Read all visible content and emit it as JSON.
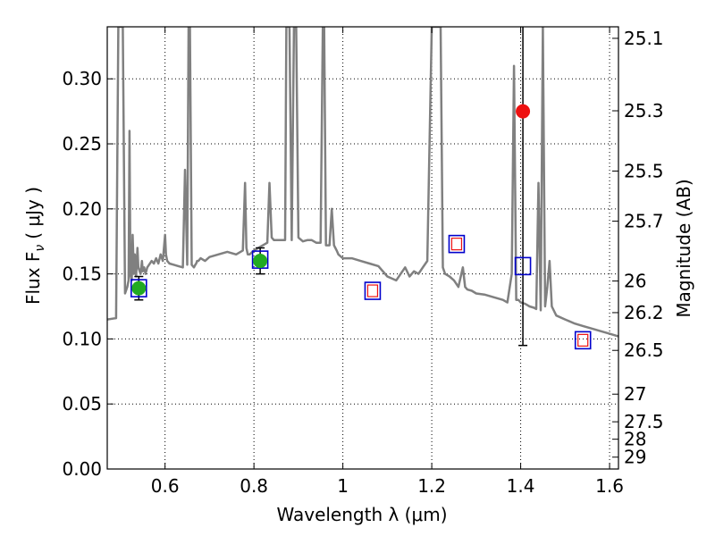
{
  "chart_data": {
    "type": "line",
    "xlabel": "Wavelength  λ (μm)",
    "ylabel": "Flux  F",
    "ylabel_sub": "ν",
    "ylabel_unit": "( μJy )",
    "y2label": "Magnitude (AB)",
    "xlim": [
      0.47,
      1.62
    ],
    "ylim": [
      0.0,
      0.34
    ],
    "grid": true,
    "x_ticks": [
      0.6,
      0.8,
      1.0,
      1.2,
      1.4,
      1.6
    ],
    "x_tick_labels": [
      "0.6",
      "0.8",
      "1",
      "1.2",
      "1.4",
      "1.6"
    ],
    "y_ticks": [
      0.0,
      0.05,
      0.1,
      0.15,
      0.2,
      0.25,
      0.3
    ],
    "y_tick_labels": [
      "0.00",
      "0.05",
      "0.10",
      "0.15",
      "0.20",
      "0.25",
      "0.30"
    ],
    "y2_ticks": [
      {
        "mag": 25.1,
        "label": "25.1"
      },
      {
        "mag": 25.3,
        "label": "25.3"
      },
      {
        "mag": 25.5,
        "label": "25.5"
      },
      {
        "mag": 25.7,
        "label": "25.7"
      },
      {
        "mag": 26.0,
        "label": "26"
      },
      {
        "mag": 26.2,
        "label": "26.2"
      },
      {
        "mag": 26.5,
        "label": "26.5"
      },
      {
        "mag": 27.0,
        "label": "27"
      },
      {
        "mag": 27.5,
        "label": "27.5"
      },
      {
        "mag": 28.0,
        "label": "28"
      },
      {
        "mag": 29.0,
        "label": "29"
      }
    ],
    "series": [
      {
        "kind": "model-spectrum",
        "color": "#808080",
        "x": [
          0.47,
          0.49,
          0.495,
          0.5,
          0.505,
          0.51,
          0.515,
          0.518,
          0.52,
          0.522,
          0.525,
          0.527,
          0.53,
          0.532,
          0.535,
          0.538,
          0.54,
          0.545,
          0.548,
          0.55,
          0.553,
          0.556,
          0.56,
          0.57,
          0.575,
          0.58,
          0.585,
          0.59,
          0.595,
          0.6,
          0.602,
          0.605,
          0.61,
          0.62,
          0.63,
          0.64,
          0.645,
          0.65,
          0.653,
          0.656,
          0.66,
          0.665,
          0.668,
          0.67,
          0.672,
          0.675,
          0.68,
          0.69,
          0.7,
          0.72,
          0.74,
          0.76,
          0.775,
          0.78,
          0.783,
          0.786,
          0.79,
          0.8,
          0.81,
          0.82,
          0.83,
          0.835,
          0.84,
          0.845,
          0.85,
          0.86,
          0.87,
          0.873,
          0.876,
          0.88,
          0.885,
          0.89,
          0.895,
          0.9,
          0.91,
          0.92,
          0.93,
          0.94,
          0.95,
          0.955,
          0.958,
          0.962,
          0.97,
          0.975,
          0.98,
          0.983,
          0.986,
          0.99,
          1.0,
          1.02,
          1.04,
          1.06,
          1.08,
          1.1,
          1.12,
          1.13,
          1.14,
          1.15,
          1.16,
          1.17,
          1.18,
          1.19,
          1.2,
          1.205,
          1.21,
          1.215,
          1.22,
          1.225,
          1.23,
          1.24,
          1.25,
          1.26,
          1.27,
          1.275,
          1.28,
          1.29,
          1.3,
          1.32,
          1.34,
          1.36,
          1.37,
          1.38,
          1.385,
          1.39,
          1.395,
          1.4,
          1.41,
          1.42,
          1.43,
          1.435,
          1.44,
          1.445,
          1.45,
          1.455,
          1.46,
          1.465,
          1.47,
          1.48,
          1.5,
          1.52,
          1.54,
          1.56,
          1.58,
          1.6,
          1.62
        ],
        "y": [
          0.115,
          0.116,
          0.34,
          0.34,
          0.34,
          0.135,
          0.14,
          0.145,
          0.26,
          0.15,
          0.145,
          0.18,
          0.15,
          0.165,
          0.148,
          0.17,
          0.155,
          0.15,
          0.16,
          0.152,
          0.155,
          0.15,
          0.155,
          0.16,
          0.158,
          0.162,
          0.158,
          0.165,
          0.16,
          0.18,
          0.165,
          0.16,
          0.158,
          0.157,
          0.156,
          0.155,
          0.23,
          0.157,
          0.34,
          0.34,
          0.157,
          0.155,
          0.157,
          0.158,
          0.16,
          0.16,
          0.162,
          0.16,
          0.163,
          0.165,
          0.167,
          0.165,
          0.168,
          0.22,
          0.17,
          0.165,
          0.165,
          0.168,
          0.17,
          0.172,
          0.174,
          0.22,
          0.178,
          0.176,
          0.176,
          0.176,
          0.176,
          0.34,
          0.34,
          0.34,
          0.176,
          0.34,
          0.34,
          0.178,
          0.175,
          0.176,
          0.176,
          0.174,
          0.174,
          0.34,
          0.34,
          0.172,
          0.172,
          0.2,
          0.172,
          0.17,
          0.168,
          0.165,
          0.162,
          0.162,
          0.16,
          0.158,
          0.156,
          0.148,
          0.145,
          0.15,
          0.155,
          0.148,
          0.152,
          0.15,
          0.155,
          0.16,
          0.34,
          0.34,
          0.34,
          0.34,
          0.34,
          0.155,
          0.15,
          0.148,
          0.145,
          0.14,
          0.155,
          0.14,
          0.138,
          0.137,
          0.135,
          0.134,
          0.132,
          0.13,
          0.128,
          0.15,
          0.31,
          0.13,
          0.13,
          0.128,
          0.127,
          0.125,
          0.124,
          0.123,
          0.22,
          0.122,
          0.34,
          0.125,
          0.14,
          0.16,
          0.125,
          0.118,
          0.115,
          0.112,
          0.11,
          0.108,
          0.106,
          0.104,
          0.102
        ]
      }
    ],
    "points": [
      {
        "kind": "green-circle-measured",
        "color": "#22aa22",
        "x": 0.541,
        "y": 0.139,
        "yerr": 0.009
      },
      {
        "kind": "green-circle-measured",
        "color": "#22aa22",
        "x": 0.814,
        "y": 0.16,
        "yerr": 0.01
      },
      {
        "kind": "red-circle-measured",
        "color": "#ee1111",
        "x": 1.405,
        "y": 0.275,
        "yerr_low": 0.18,
        "yerr_high": 0.4
      }
    ],
    "model_photometry": [
      {
        "x": 0.541,
        "y": 0.139,
        "inner_red": false
      },
      {
        "x": 0.814,
        "y": 0.161,
        "inner_red": false
      },
      {
        "x": 1.067,
        "y": 0.137,
        "inner_red": true
      },
      {
        "x": 1.256,
        "y": 0.173,
        "inner_red": true
      },
      {
        "x": 1.405,
        "y": 0.156,
        "inner_red": false
      },
      {
        "x": 1.54,
        "y": 0.099,
        "inner_red": true
      }
    ],
    "colors": {
      "spectrum": "#808080",
      "box_outer": "#0000cc",
      "box_inner": "#ee1111",
      "errorbar": "#000000"
    }
  }
}
